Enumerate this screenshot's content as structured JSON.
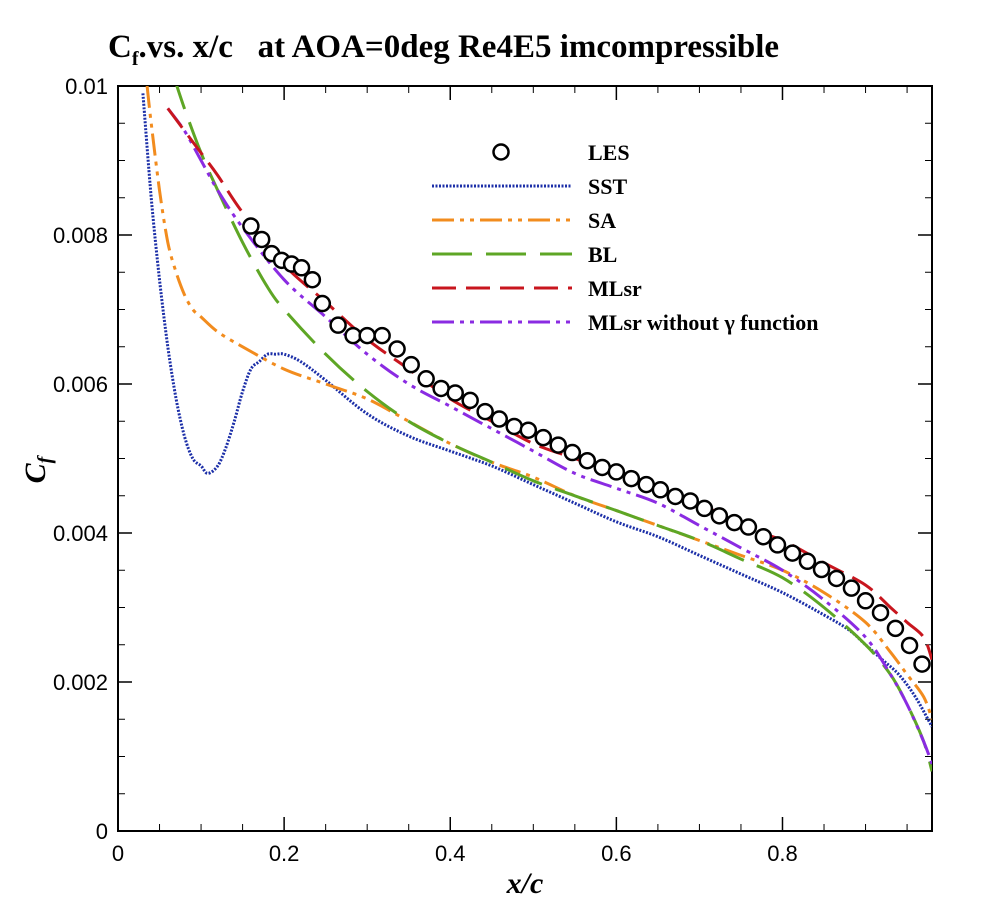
{
  "chart_data": {
    "type": "line",
    "title": {
      "prefix": "C",
      "sub": "f",
      "rest": ".vs. x/c   at AOA=0deg Re4E5 imcompressible"
    },
    "xlabel": "x/c",
    "ylabel": {
      "main": "C",
      "sub": "f"
    },
    "xlim": [
      0,
      0.98
    ],
    "ylim": [
      0,
      0.01
    ],
    "x_ticks": [
      0,
      0.2,
      0.4,
      0.6,
      0.8
    ],
    "x_tick_labels": [
      "0",
      "0.2",
      "0.4",
      "0.6",
      "0.8"
    ],
    "y_ticks": [
      0,
      0.002,
      0.004,
      0.006,
      0.008,
      0.01
    ],
    "y_tick_labels": [
      "0",
      "0.002",
      "0.004",
      "0.006",
      "0.008",
      "0.01"
    ],
    "legend_position": "top-right",
    "series": [
      {
        "name": "LES",
        "style": "markers",
        "color": "#000000",
        "x": [
          0.16,
          0.173,
          0.185,
          0.197,
          0.209,
          0.221,
          0.234,
          0.246,
          0.265,
          0.283,
          0.3,
          0.318,
          0.336,
          0.353,
          0.371,
          0.389,
          0.406,
          0.424,
          0.442,
          0.459,
          0.477,
          0.494,
          0.512,
          0.53,
          0.547,
          0.565,
          0.583,
          0.6,
          0.618,
          0.636,
          0.653,
          0.671,
          0.689,
          0.706,
          0.724,
          0.742,
          0.759,
          0.777,
          0.794,
          0.812,
          0.83,
          0.847,
          0.865,
          0.883,
          0.9,
          0.918,
          0.936,
          0.953,
          0.968
        ],
        "y": [
          0.00812,
          0.00794,
          0.00775,
          0.00766,
          0.00761,
          0.00756,
          0.0074,
          0.00708,
          0.00679,
          0.00665,
          0.00665,
          0.00665,
          0.00647,
          0.00626,
          0.00607,
          0.00594,
          0.00588,
          0.00578,
          0.00563,
          0.00553,
          0.00543,
          0.00538,
          0.00528,
          0.00518,
          0.00508,
          0.00497,
          0.00488,
          0.00482,
          0.00473,
          0.00465,
          0.00458,
          0.00449,
          0.00443,
          0.00433,
          0.00423,
          0.00414,
          0.00408,
          0.00395,
          0.00384,
          0.00373,
          0.00362,
          0.00351,
          0.00339,
          0.00326,
          0.00309,
          0.00293,
          0.00272,
          0.00249,
          0.00224
        ]
      },
      {
        "name": "SST",
        "style": "dotted",
        "color": "#1c2fa8",
        "x": [
          0.03,
          0.04,
          0.05,
          0.06,
          0.07,
          0.08,
          0.09,
          0.1,
          0.108,
          0.12,
          0.13,
          0.14,
          0.15,
          0.16,
          0.17,
          0.18,
          0.19,
          0.2,
          0.22,
          0.25,
          0.3,
          0.35,
          0.4,
          0.45,
          0.5,
          0.55,
          0.6,
          0.65,
          0.7,
          0.75,
          0.8,
          0.85,
          0.88,
          0.9,
          0.92,
          0.94,
          0.96,
          0.98
        ],
        "y": [
          0.0099,
          0.0085,
          0.0074,
          0.0065,
          0.0058,
          0.0053,
          0.005,
          0.0049,
          0.0048,
          0.0049,
          0.00515,
          0.0055,
          0.0059,
          0.0062,
          0.0063,
          0.0064,
          0.0064,
          0.0064,
          0.0063,
          0.00605,
          0.0056,
          0.0053,
          0.0051,
          0.0049,
          0.00465,
          0.0044,
          0.00415,
          0.00395,
          0.0037,
          0.00345,
          0.0032,
          0.0029,
          0.0027,
          0.0025,
          0.0023,
          0.0021,
          0.0018,
          0.0014
        ]
      },
      {
        "name": "SA",
        "style": "dash-dot-dot",
        "color": "#f28c1e",
        "x": [
          0.035,
          0.04,
          0.05,
          0.06,
          0.07,
          0.08,
          0.09,
          0.1,
          0.12,
          0.15,
          0.2,
          0.25,
          0.3,
          0.35,
          0.4,
          0.45,
          0.5,
          0.55,
          0.6,
          0.65,
          0.7,
          0.75,
          0.8,
          0.85,
          0.9,
          0.93,
          0.95,
          0.97,
          0.98
        ],
        "y": [
          0.01,
          0.0095,
          0.0086,
          0.0079,
          0.0075,
          0.0072,
          0.007,
          0.0069,
          0.0067,
          0.0065,
          0.0062,
          0.006,
          0.0058,
          0.0055,
          0.0052,
          0.00495,
          0.00475,
          0.0045,
          0.0043,
          0.0041,
          0.0039,
          0.0037,
          0.0035,
          0.0032,
          0.0028,
          0.0024,
          0.0021,
          0.0018,
          0.0015
        ]
      },
      {
        "name": "BL",
        "style": "long-dash",
        "color": "#5ea625",
        "x": [
          0.065,
          0.08,
          0.1,
          0.12,
          0.15,
          0.18,
          0.2,
          0.25,
          0.3,
          0.35,
          0.4,
          0.45,
          0.5,
          0.55,
          0.6,
          0.65,
          0.7,
          0.75,
          0.8,
          0.85,
          0.9,
          0.93,
          0.95,
          0.97,
          0.98
        ],
        "y": [
          0.0102,
          0.0097,
          0.0091,
          0.0086,
          0.0079,
          0.0073,
          0.007,
          0.0064,
          0.0059,
          0.0055,
          0.0052,
          0.00495,
          0.0047,
          0.0045,
          0.0043,
          0.0041,
          0.0039,
          0.00365,
          0.0034,
          0.003,
          0.0025,
          0.0021,
          0.0017,
          0.0012,
          0.0008
        ]
      },
      {
        "name": "MLsr",
        "style": "dashed",
        "color": "#c8161e",
        "x": [
          0.06,
          0.08,
          0.1,
          0.12,
          0.15,
          0.2,
          0.25,
          0.3,
          0.35,
          0.4,
          0.45,
          0.5,
          0.55,
          0.6,
          0.65,
          0.7,
          0.75,
          0.8,
          0.85,
          0.9,
          0.93,
          0.95,
          0.97,
          0.98
        ],
        "y": [
          0.0097,
          0.0094,
          0.0091,
          0.0088,
          0.0083,
          0.0076,
          0.0071,
          0.0066,
          0.0062,
          0.0058,
          0.0055,
          0.0052,
          0.005,
          0.0048,
          0.0046,
          0.0044,
          0.0041,
          0.0039,
          0.0036,
          0.0033,
          0.003,
          0.0028,
          0.0026,
          0.0023
        ]
      },
      {
        "name": "MLsr without γ function",
        "style": "dash-dot-dot",
        "color": "#8a2be2",
        "x": [
          0.06,
          0.08,
          0.1,
          0.12,
          0.15,
          0.2,
          0.25,
          0.3,
          0.35,
          0.4,
          0.45,
          0.5,
          0.55,
          0.6,
          0.65,
          0.7,
          0.75,
          0.8,
          0.85,
          0.9,
          0.93,
          0.95,
          0.97,
          0.98
        ],
        "y": [
          0.0097,
          0.0094,
          0.009,
          0.0086,
          0.0081,
          0.0074,
          0.0069,
          0.0064,
          0.006,
          0.0057,
          0.0054,
          0.0051,
          0.0048,
          0.0046,
          0.0044,
          0.0041,
          0.0038,
          0.0035,
          0.0031,
          0.0026,
          0.0021,
          0.0017,
          0.0012,
          0.0009
        ]
      }
    ]
  }
}
